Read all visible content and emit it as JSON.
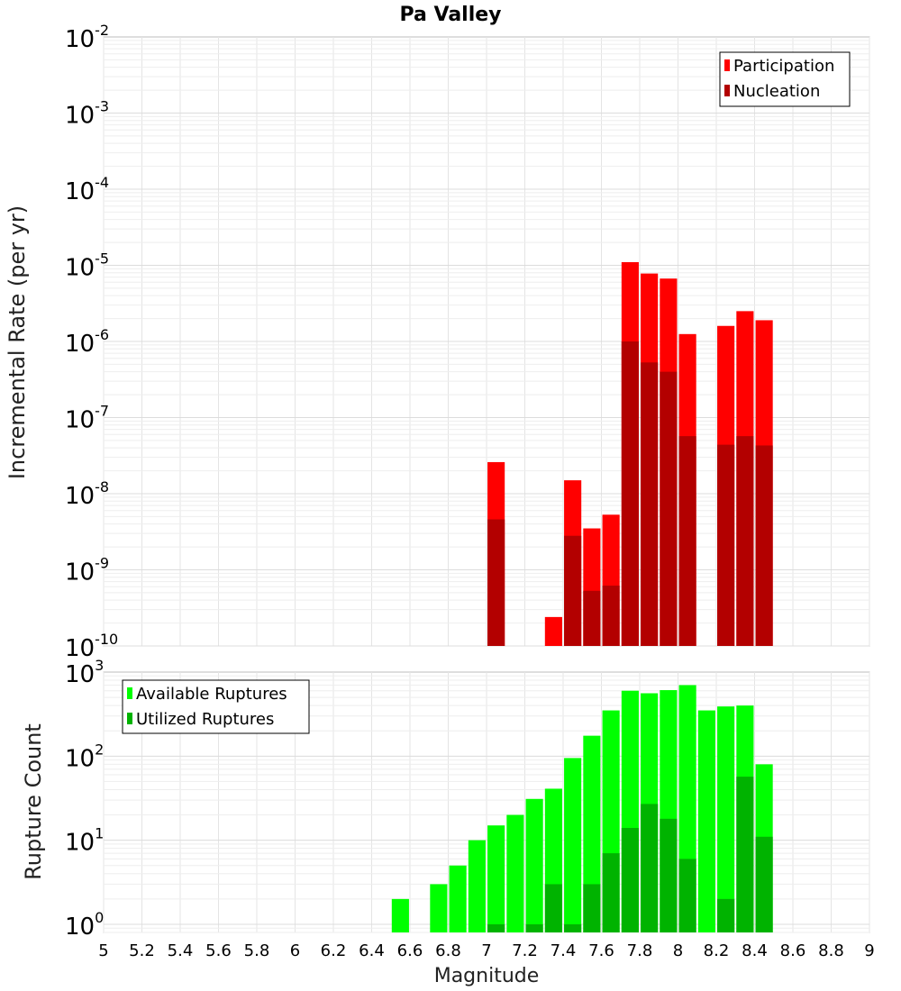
{
  "chart_data": [
    {
      "type": "bar",
      "title": "Pa Valley",
      "xlabel": "",
      "ylabel": "Incremental Rate (per yr)",
      "y_scale": "log",
      "ylim": [
        1e-10,
        0.01
      ],
      "xlim": [
        5,
        9
      ],
      "grid": true,
      "legend_position": "top-right",
      "y_ticks": [
        {
          "base": "10",
          "exp": "-2"
        },
        {
          "base": "10",
          "exp": "-3"
        },
        {
          "base": "10",
          "exp": "-4"
        },
        {
          "base": "10",
          "exp": "-5"
        },
        {
          "base": "10",
          "exp": "-6"
        },
        {
          "base": "10",
          "exp": "-7"
        },
        {
          "base": "10",
          "exp": "-8"
        },
        {
          "base": "10",
          "exp": "-9"
        },
        {
          "base": "10",
          "exp": "-10"
        }
      ],
      "series": [
        {
          "name": "Participation",
          "color": "#ff0000",
          "points": [
            {
              "x": 7.05,
              "y": 2.6e-08
            },
            {
              "x": 7.35,
              "y": 2.4e-10
            },
            {
              "x": 7.45,
              "y": 1.5e-08
            },
            {
              "x": 7.55,
              "y": 3.5e-09
            },
            {
              "x": 7.65,
              "y": 5.3e-09
            },
            {
              "x": 7.75,
              "y": 1.1e-05
            },
            {
              "x": 7.85,
              "y": 7.8e-06
            },
            {
              "x": 7.95,
              "y": 6.7e-06
            },
            {
              "x": 8.05,
              "y": 1.25e-06
            },
            {
              "x": 8.25,
              "y": 1.6e-06
            },
            {
              "x": 8.35,
              "y": 2.5e-06
            },
            {
              "x": 8.45,
              "y": 1.9e-06
            }
          ]
        },
        {
          "name": "Nucleation",
          "color": "#b30000",
          "points": [
            {
              "x": 7.05,
              "y": 4.6e-09
            },
            {
              "x": 7.45,
              "y": 2.8e-09
            },
            {
              "x": 7.55,
              "y": 5.3e-10
            },
            {
              "x": 7.65,
              "y": 6.2e-10
            },
            {
              "x": 7.75,
              "y": 1e-06
            },
            {
              "x": 7.85,
              "y": 5.3e-07
            },
            {
              "x": 7.95,
              "y": 4e-07
            },
            {
              "x": 8.05,
              "y": 5.7e-08
            },
            {
              "x": 8.25,
              "y": 4.4e-08
            },
            {
              "x": 8.35,
              "y": 5.7e-08
            },
            {
              "x": 8.45,
              "y": 4.3e-08
            }
          ]
        }
      ]
    },
    {
      "type": "bar",
      "title": "",
      "xlabel": "Magnitude",
      "ylabel": "Rupture Count",
      "y_scale": "log",
      "ylim": [
        0.8,
        1000
      ],
      "xlim": [
        5,
        9
      ],
      "grid": true,
      "legend_position": "top-left",
      "x_ticks": [
        "5",
        "5.2",
        "5.4",
        "5.6",
        "5.8",
        "6",
        "6.2",
        "6.4",
        "6.6",
        "6.8",
        "7",
        "7.2",
        "7.4",
        "7.6",
        "7.8",
        "8",
        "8.2",
        "8.4",
        "8.6",
        "8.8",
        "9"
      ],
      "y_ticks": [
        {
          "base": "10",
          "exp": "3"
        },
        {
          "base": "10",
          "exp": "2"
        },
        {
          "base": "10",
          "exp": "1"
        },
        {
          "base": "10",
          "exp": "0"
        }
      ],
      "series": [
        {
          "name": "Available Ruptures",
          "color": "#00ff00",
          "points": [
            {
              "x": 6.55,
              "y": 2
            },
            {
              "x": 6.75,
              "y": 3
            },
            {
              "x": 6.85,
              "y": 5
            },
            {
              "x": 6.95,
              "y": 10
            },
            {
              "x": 7.05,
              "y": 15
            },
            {
              "x": 7.15,
              "y": 20
            },
            {
              "x": 7.25,
              "y": 31
            },
            {
              "x": 7.35,
              "y": 41
            },
            {
              "x": 7.45,
              "y": 95
            },
            {
              "x": 7.55,
              "y": 175
            },
            {
              "x": 7.65,
              "y": 350
            },
            {
              "x": 7.75,
              "y": 600
            },
            {
              "x": 7.85,
              "y": 560
            },
            {
              "x": 7.95,
              "y": 610
            },
            {
              "x": 8.05,
              "y": 700
            },
            {
              "x": 8.15,
              "y": 350
            },
            {
              "x": 8.25,
              "y": 390
            },
            {
              "x": 8.35,
              "y": 400
            },
            {
              "x": 8.45,
              "y": 80
            }
          ]
        },
        {
          "name": "Utilized Ruptures",
          "color": "#00b300",
          "points": [
            {
              "x": 7.05,
              "y": 1
            },
            {
              "x": 7.25,
              "y": 1
            },
            {
              "x": 7.35,
              "y": 3
            },
            {
              "x": 7.45,
              "y": 1
            },
            {
              "x": 7.55,
              "y": 3
            },
            {
              "x": 7.65,
              "y": 7
            },
            {
              "x": 7.75,
              "y": 14
            },
            {
              "x": 7.85,
              "y": 27
            },
            {
              "x": 7.95,
              "y": 18
            },
            {
              "x": 8.05,
              "y": 6
            },
            {
              "x": 8.25,
              "y": 2
            },
            {
              "x": 8.35,
              "y": 57
            },
            {
              "x": 8.45,
              "y": 11
            }
          ]
        }
      ]
    }
  ]
}
